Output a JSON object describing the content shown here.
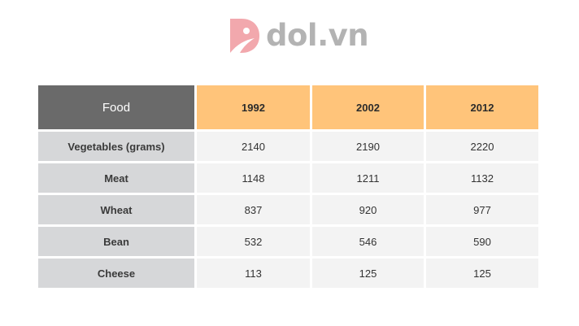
{
  "brand": {
    "name": "dol.vn",
    "icon": "dol-logo-icon",
    "colors": {
      "mark": "#f2a8ad",
      "text": "#b3b3b3"
    }
  },
  "colors": {
    "header_label_bg": "#6a6a6a",
    "header_year_bg": "#ffc47a",
    "row_label_bg": "#d6d7d9",
    "cell_bg": "#f3f3f3"
  },
  "chart_data": {
    "type": "table",
    "columns": [
      "Food",
      "1992",
      "2002",
      "2012"
    ],
    "rows": [
      {
        "label": "Vegetables (grams)",
        "values": [
          "2140",
          "2190",
          "2220"
        ]
      },
      {
        "label": "Meat",
        "values": [
          "1148",
          "1211",
          "1132"
        ]
      },
      {
        "label": "Wheat",
        "values": [
          "837",
          "920",
          "977"
        ]
      },
      {
        "label": "Bean",
        "values": [
          "532",
          "546",
          "590"
        ]
      },
      {
        "label": "Cheese",
        "values": [
          "113",
          "125",
          "125"
        ]
      }
    ]
  }
}
